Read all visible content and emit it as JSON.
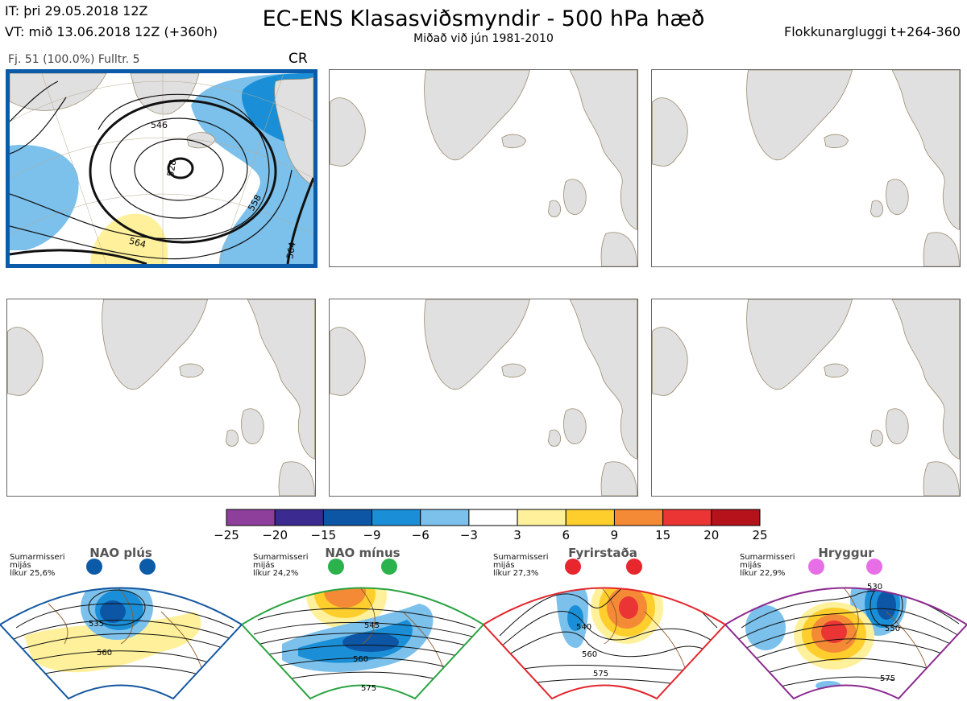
{
  "header": {
    "run_line1": "IT: þri 29.05.2018 12Z",
    "run_line2": "VT: mið 13.06.2018 12Z  (+360h)",
    "title": "EC-ENS Klasasviðsmyndir - 500 hPa hæð",
    "subtitle": "Miðað við jún 1981-2010",
    "window": "Flokkunargluggi t+264-360"
  },
  "panel": {
    "info": "Fj. 51 (100.0%)   Fulltr. 5",
    "regime_code": "CR",
    "contour_labels": [
      "546",
      "528",
      "558",
      "564",
      "564"
    ]
  },
  "chart_data": [
    {
      "type": "heatmap",
      "title": "",
      "colorbar": {
        "ticks": [
          -25,
          -20,
          -15,
          -9,
          -6,
          -3,
          3,
          6,
          9,
          15,
          20,
          25
        ],
        "colors": [
          "#8e3f9c",
          "#3b2a8f",
          "#0d56a6",
          "#1a8fd7",
          "#7cc1ec",
          "#ffffff",
          "#fff19c",
          "#fece2c",
          "#f58a36",
          "#ea3534",
          "#b5121b"
        ]
      }
    },
    {
      "type": "heatmap",
      "name": "NAO plús",
      "note": [
        "Sumarmisseri",
        "mijás",
        "líkur 25,6%"
      ],
      "contour_labels": [
        "535",
        "560"
      ],
      "frame_color": "#1457a0",
      "dot_color": "#0b5ba8"
    },
    {
      "type": "heatmap",
      "name": "NAO mínus",
      "note": [
        "Sumarmisseri",
        "mijás",
        "líkur 24,2%"
      ],
      "contour_labels": [
        "545",
        "560",
        "575"
      ],
      "frame_color": "#2aa342",
      "dot_color": "#2bb24c"
    },
    {
      "type": "heatmap",
      "name": "Fyrirstaða",
      "note": [
        "Sumarmisseri",
        "mijás",
        "líkur 27,3%"
      ],
      "contour_labels": [
        "540",
        "560",
        "575"
      ],
      "frame_color": "#e3262d",
      "dot_color": "#e8262d"
    },
    {
      "type": "heatmap",
      "name": "Hryggur",
      "note": [
        "Sumarmisseri",
        "mijás",
        "líkur 22,9%"
      ],
      "contour_labels": [
        "530",
        "550",
        "575"
      ],
      "frame_color": "#8c2a8f",
      "dot_color": "#e86ee8"
    }
  ],
  "colors": {
    "land": "#e0e0e0",
    "coast": "#9a8a6c",
    "regime_coast": "#8c5a2b",
    "contour": "#111111",
    "selected_border": "#0b5ba8"
  }
}
